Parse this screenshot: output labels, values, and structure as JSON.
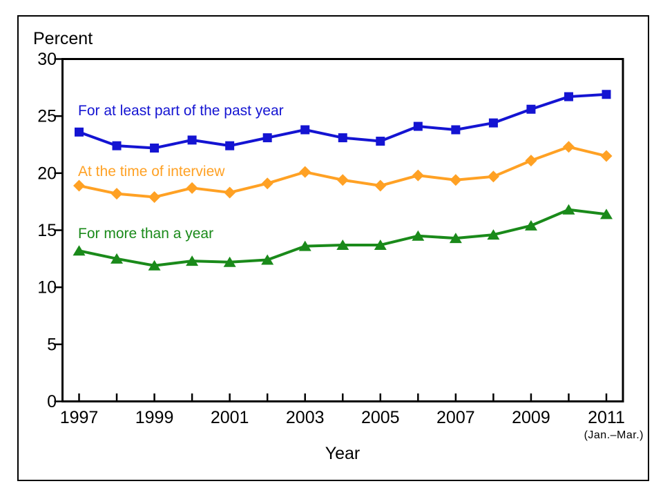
{
  "chart_data": {
    "type": "line",
    "title": "",
    "ylabel": "Percent",
    "xlabel": "Year",
    "x_note": "(Jan.–Mar.)",
    "x": [
      1997,
      1998,
      1999,
      2000,
      2001,
      2002,
      2003,
      2004,
      2005,
      2006,
      2007,
      2008,
      2009,
      2010,
      2011
    ],
    "x_tick_labels": [
      "1997",
      "1999",
      "2001",
      "2003",
      "2005",
      "2007",
      "2009",
      "2011"
    ],
    "xlim": [
      1997,
      2011
    ],
    "ylim": [
      0,
      30
    ],
    "yticks": [
      0,
      5,
      10,
      15,
      20,
      25,
      30
    ],
    "grid": false,
    "legend_position": "inline-labels-left",
    "axis_color": "#000000",
    "background_color": "#ffffff",
    "series": [
      {
        "name": "For at least part of the past year",
        "color": "#1414d2",
        "marker": "square",
        "values": [
          23.6,
          22.4,
          22.2,
          22.9,
          22.4,
          23.1,
          23.8,
          23.1,
          22.8,
          24.1,
          23.8,
          24.4,
          25.6,
          26.7,
          26.9
        ]
      },
      {
        "name": "At the time of interview",
        "color": "#ffa124",
        "marker": "diamond",
        "values": [
          18.9,
          18.2,
          17.9,
          18.7,
          18.3,
          19.1,
          20.1,
          19.4,
          18.9,
          19.8,
          19.4,
          19.7,
          21.1,
          22.3,
          21.5
        ]
      },
      {
        "name": "For more than a year",
        "color": "#1a8a1a",
        "marker": "triangle",
        "values": [
          13.2,
          12.5,
          11.9,
          12.3,
          12.2,
          12.4,
          13.6,
          13.7,
          13.7,
          14.5,
          14.3,
          14.6,
          15.4,
          16.8,
          16.4
        ]
      }
    ]
  }
}
